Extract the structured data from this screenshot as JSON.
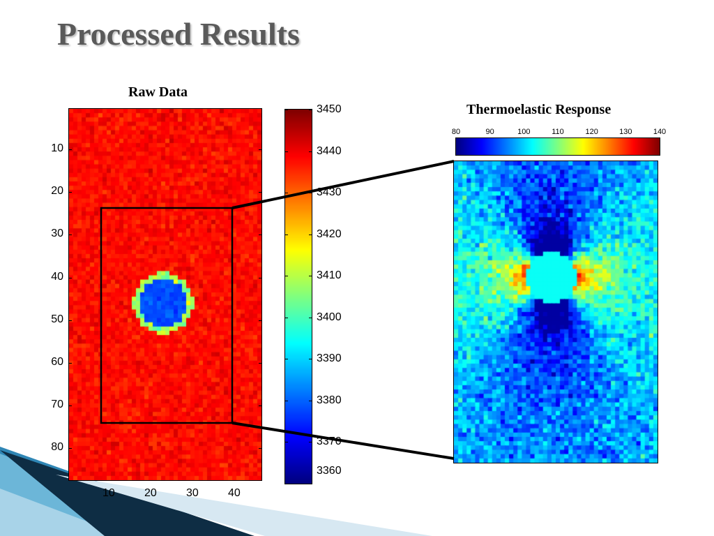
{
  "slide": {
    "title": "Processed Results"
  },
  "chart_data": [
    {
      "type": "heatmap",
      "title": "Raw Data",
      "colormap": "jet",
      "grid_size": {
        "columns": 46,
        "rows": 87
      },
      "xticks": [
        10,
        20,
        30,
        40
      ],
      "yticks": [
        10,
        20,
        30,
        40,
        50,
        60,
        70,
        80
      ],
      "xlim": [
        0.5,
        46.5
      ],
      "ylim": [
        0.5,
        87.5
      ],
      "colorbar": {
        "range": [
          3360,
          3450
        ],
        "ticks": [
          3450,
          3440,
          3430,
          3420,
          3410,
          3400,
          3390,
          3380,
          3370,
          3360
        ]
      },
      "background_value": 3438,
      "feature": {
        "shape": "circle",
        "center_col": 23,
        "center_row": 46,
        "radius": 6.5,
        "value": 3378
      },
      "region_of_interest": {
        "col_range": [
          8,
          39
        ],
        "row_range": [
          24,
          74
        ]
      }
    },
    {
      "type": "heatmap",
      "title": "Thermoelastic Response",
      "colormap": "jet",
      "colorbar": {
        "orientation": "horizontal",
        "range": [
          80,
          140
        ],
        "ticks": [
          80,
          90,
          100,
          110,
          120,
          130,
          140
        ]
      },
      "grid_size": {
        "columns": 48,
        "rows": 70
      },
      "hole": {
        "center_col": 23,
        "center_row": 27,
        "radius": 6,
        "value": 103
      },
      "background_value": 100,
      "peak_value": 140,
      "min_value": 82
    }
  ]
}
